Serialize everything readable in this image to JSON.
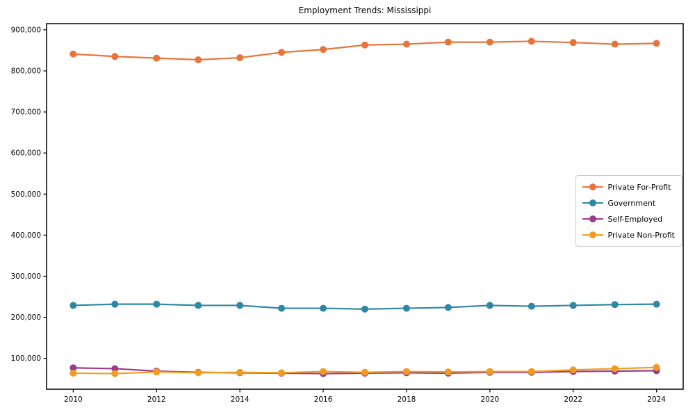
{
  "chart_data": {
    "type": "line",
    "title": "Employment Trends: Mississippi",
    "xlabel": "",
    "ylabel": "",
    "grid": false,
    "legend_position": "center right",
    "x": [
      2010,
      2011,
      2012,
      2013,
      2014,
      2015,
      2016,
      2017,
      2018,
      2019,
      2020,
      2021,
      2022,
      2023,
      2024
    ],
    "series": [
      {
        "name": "Private For-Profit",
        "color": "#E8743B",
        "values": [
          841000,
          835000,
          831000,
          827000,
          832000,
          845000,
          852000,
          863000,
          865000,
          870000,
          870000,
          872000,
          869000,
          865000,
          867000
        ]
      },
      {
        "name": "Government",
        "color": "#2E87A3",
        "values": [
          229000,
          232000,
          232000,
          229000,
          229000,
          222000,
          222000,
          220000,
          222000,
          224000,
          229000,
          227000,
          229000,
          231000,
          232000
        ]
      },
      {
        "name": "Self-Employed",
        "color": "#9D3A8B",
        "values": [
          77000,
          75000,
          69000,
          66000,
          65000,
          64000,
          63000,
          64000,
          65000,
          64000,
          66000,
          66000,
          68000,
          69000,
          70000
        ]
      },
      {
        "name": "Private Non-Profit",
        "color": "#F29C1F",
        "values": [
          64000,
          63000,
          67000,
          65000,
          66000,
          65000,
          68000,
          66000,
          68000,
          67000,
          68000,
          68000,
          72000,
          75000,
          78000
        ]
      }
    ],
    "xticks": [
      2010,
      2012,
      2014,
      2016,
      2018,
      2020,
      2022,
      2024
    ],
    "yticks": [
      100000,
      200000,
      300000,
      400000,
      500000,
      600000,
      700000,
      800000,
      900000
    ],
    "ytick_labels": [
      "100,000",
      "200,000",
      "300,000",
      "400,000",
      "500,000",
      "600,000",
      "700,000",
      "800,000",
      "900,000"
    ],
    "xlim": [
      2009.36,
      2024.64
    ],
    "ylim": [
      25000,
      915000
    ],
    "axis_color": "#000000",
    "background_color": "#ffffff"
  }
}
